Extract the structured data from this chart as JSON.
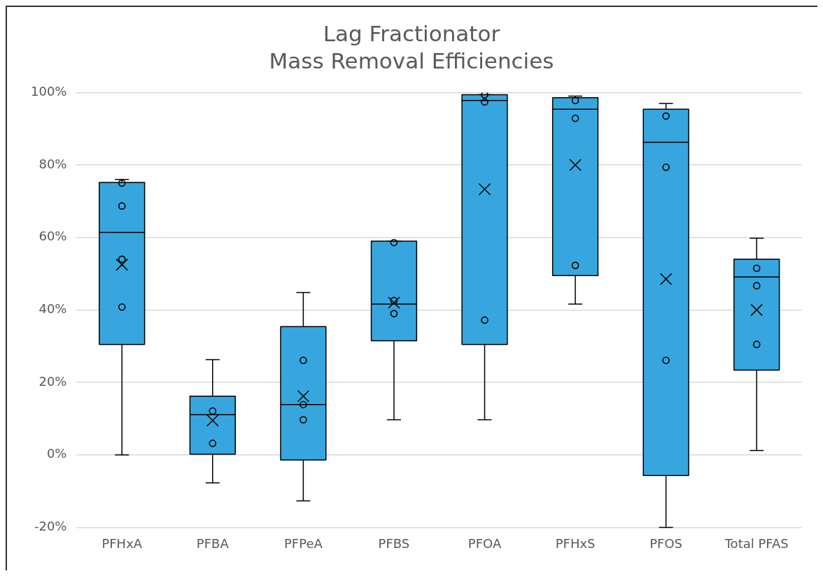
{
  "chart_data": {
    "type": "box",
    "title": "Lag Fractionator",
    "subtitle": "Mass Removal Efficiencies",
    "categories": [
      "PFHxA",
      "PFBA",
      "PFPeA",
      "PFBS",
      "PFOA",
      "PFHxS",
      "PFOS",
      "Total PFAS"
    ],
    "color": "#38a6de",
    "boxes": [
      {
        "low": 0,
        "q1": 30.5,
        "median": 61.4,
        "q3": 75.2,
        "high": 76,
        "mean": 52.5
      },
      {
        "low": -7.7,
        "q1": 0.2,
        "median": 11.1,
        "q3": 16.2,
        "high": 26.3,
        "mean": 9.5
      },
      {
        "low": -12.7,
        "q1": -1.4,
        "median": 13.9,
        "q3": 35.4,
        "high": 44.8,
        "mean": 16.2
      },
      {
        "low": 9.7,
        "q1": 31.5,
        "median": 41.6,
        "q3": 59,
        "high": 59,
        "mean": 42
      },
      {
        "low": 9.7,
        "q1": 30.5,
        "median": 97.8,
        "q3": 99.4,
        "high": 99.4,
        "mean": 73.3
      },
      {
        "low": 41.6,
        "q1": 49.5,
        "median": 95.4,
        "q3": 98.6,
        "high": 99,
        "mean": 80
      },
      {
        "low": -20,
        "q1": -5.7,
        "median": 86.3,
        "q3": 95.4,
        "high": 97,
        "mean": 48.5
      },
      {
        "low": 1.2,
        "q1": 23.4,
        "median": 49.1,
        "q3": 54,
        "high": 59.8,
        "mean": 40
      }
    ],
    "series": [
      {
        "type": "scatter",
        "marker": "circle",
        "color": "#000000",
        "x": [
          "PFHxA",
          "PFHxA",
          "PFHxA",
          "PFHxA",
          "PFBA",
          "PFBA",
          "PFPeA",
          "PFPeA",
          "PFPeA",
          "PFBS",
          "PFBS",
          "PFBS",
          "PFOA",
          "PFOA",
          "PFOA",
          "PFHxS",
          "PFHxS",
          "PFHxS",
          "PFOS",
          "PFOS",
          "PFOS",
          "Total PFAS",
          "Total PFAS",
          "Total PFAS"
        ],
        "values": [
          75,
          68.7,
          54,
          40.8,
          12.1,
          3.2,
          26.1,
          13.9,
          9.7,
          58.6,
          42.6,
          39,
          99.4,
          97.4,
          37.2,
          97.8,
          92.9,
          52.3,
          93.5,
          79.4,
          26.1,
          51.5,
          46.7,
          30.5
        ]
      }
    ],
    "ylim": [
      -20,
      100
    ],
    "yticks": [
      {
        "value": -20,
        "label": "-20%"
      },
      {
        "value": 0,
        "label": "0%"
      },
      {
        "value": 20,
        "label": "20%"
      },
      {
        "value": 40,
        "label": "40%"
      },
      {
        "value": 60,
        "label": "60%"
      },
      {
        "value": 80,
        "label": "80%"
      },
      {
        "value": 100,
        "label": "100%"
      }
    ],
    "grid": "y"
  }
}
